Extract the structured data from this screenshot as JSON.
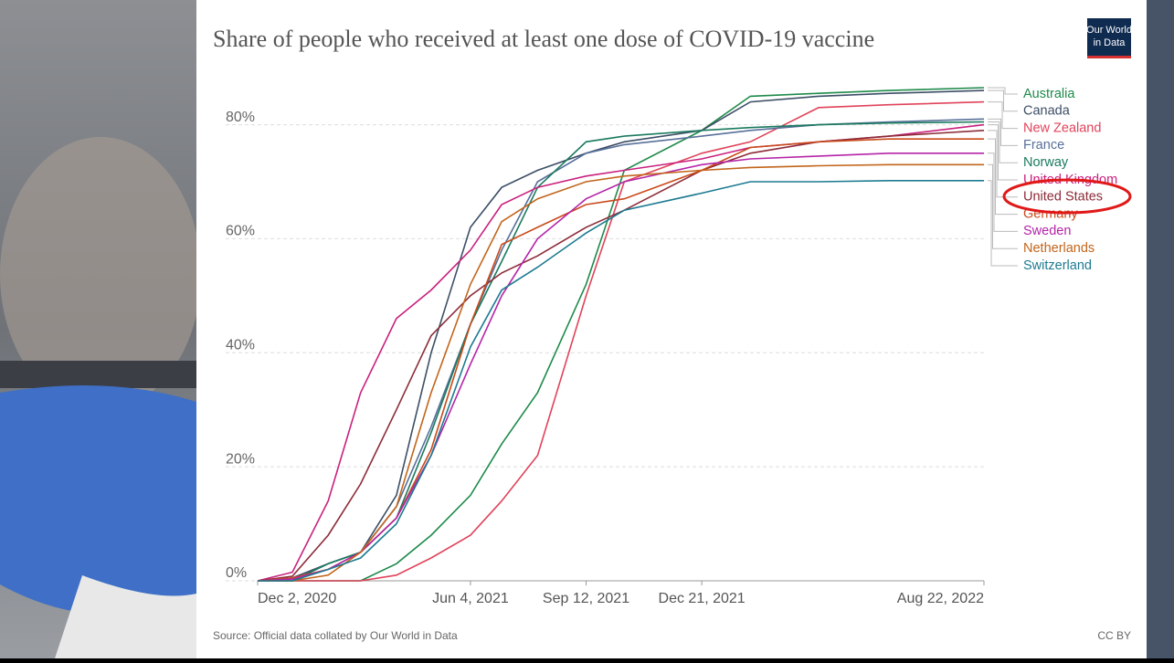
{
  "chart_data": {
    "type": "line",
    "title": "Share of people who received at least one dose of COVID-19 vaccine",
    "logo": [
      "Our World",
      "in Data"
    ],
    "source": "Source: Official data collated by Our World in Data",
    "license": "CC BY",
    "x": [
      "2020-12-02",
      "2021-01-01",
      "2021-02-01",
      "2021-03-01",
      "2021-04-01",
      "2021-05-01",
      "2021-06-04",
      "2021-07-01",
      "2021-08-01",
      "2021-09-12",
      "2021-10-15",
      "2021-12-21",
      "2022-02-01",
      "2022-04-01",
      "2022-06-01",
      "2022-08-22"
    ],
    "xlim": [
      "2020-12-02",
      "2022-08-22"
    ],
    "xticks": [
      {
        "value": "2020-12-02",
        "label": "Dec 2, 2020"
      },
      {
        "value": "2021-06-04",
        "label": "Jun 4, 2021"
      },
      {
        "value": "2021-09-12",
        "label": "Sep 12, 2021"
      },
      {
        "value": "2021-12-21",
        "label": "Dec 21, 2021"
      },
      {
        "value": "2022-08-22",
        "label": "Aug 22, 2022"
      }
    ],
    "ylim": [
      0,
      86.5
    ],
    "yticks": [
      {
        "value": 0,
        "label": "0%"
      },
      {
        "value": 20,
        "label": "20%"
      },
      {
        "value": 40,
        "label": "40%"
      },
      {
        "value": 60,
        "label": "60%"
      },
      {
        "value": 80,
        "label": "80%"
      }
    ],
    "grid": true,
    "series": [
      {
        "name": "Australia",
        "color": "#1e8a4a",
        "values": [
          0,
          0,
          0,
          0,
          3,
          8,
          15,
          24,
          33,
          52,
          72,
          79,
          85,
          85.5,
          86,
          86.5
        ]
      },
      {
        "name": "Canada",
        "color": "#3c4e66",
        "values": [
          0,
          0.5,
          3,
          5,
          15,
          40,
          62,
          69,
          72,
          75,
          77,
          79,
          84,
          85,
          85.5,
          86
        ]
      },
      {
        "name": "New Zealand",
        "color": "#e0435a",
        "values": [
          0,
          0,
          0,
          0,
          1,
          4,
          8,
          14,
          22,
          50,
          70,
          75,
          77,
          83,
          83.5,
          84
        ]
      },
      {
        "name": "France",
        "color": "#58709a",
        "values": [
          0,
          0,
          3,
          5,
          13,
          27,
          45,
          58,
          70,
          75,
          76.5,
          78,
          79,
          80,
          80.5,
          81
        ]
      },
      {
        "name": "Norway",
        "color": "#1a7a5e",
        "values": [
          0,
          0,
          3,
          5,
          11,
          26,
          45,
          56,
          69,
          77,
          78,
          79,
          79.5,
          80,
          80.3,
          80.5
        ]
      },
      {
        "name": "United Kingdom",
        "color": "#c9207e",
        "values": [
          0,
          1.5,
          14,
          33,
          46,
          51,
          58,
          66,
          69,
          71,
          72,
          74,
          76,
          77,
          78,
          80
        ]
      },
      {
        "name": "United States",
        "color": "#8c2b38",
        "values": [
          0,
          0.8,
          8,
          17,
          30,
          43,
          50,
          54,
          57,
          62,
          65,
          72,
          75,
          77,
          78,
          79
        ]
      },
      {
        "name": "Germany",
        "color": "#c94a1a",
        "values": [
          0,
          0.5,
          2,
          5,
          11,
          23,
          45,
          59,
          62,
          66,
          67,
          72,
          76,
          77,
          77.5,
          77.5
        ]
      },
      {
        "name": "Sweden",
        "color": "#b524a8",
        "values": [
          0,
          0.3,
          2,
          5,
          11,
          22,
          38,
          50,
          60,
          67,
          70,
          73,
          74,
          74.5,
          75,
          75
        ]
      },
      {
        "name": "Netherlands",
        "color": "#c2651b",
        "values": [
          0,
          0,
          1,
          5,
          13,
          33,
          52,
          63,
          67,
          70,
          71,
          72,
          72.5,
          72.8,
          73,
          73
        ]
      },
      {
        "name": "Switzerland",
        "color": "#1c7a91",
        "values": [
          0,
          0,
          2,
          4,
          10,
          22,
          41,
          51,
          55,
          61,
          65,
          68,
          70,
          70,
          70.2,
          70.2
        ]
      }
    ]
  }
}
